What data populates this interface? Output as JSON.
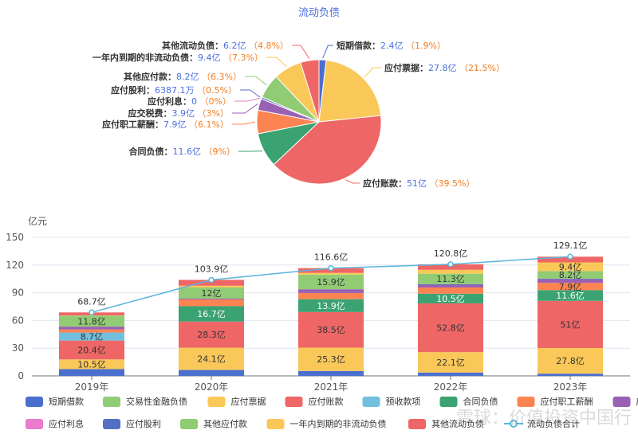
{
  "pie": {
    "title": "流动负债",
    "slices": [
      {
        "name": "短期借款",
        "value_label": "2.4亿",
        "pct_label": "1.9%",
        "value": 2.4,
        "color": "#4a6fce"
      },
      {
        "name": "应付票据",
        "value_label": "27.8亿",
        "pct_label": "21.5%",
        "value": 27.8,
        "color": "#f9c858"
      },
      {
        "name": "应付账款",
        "value_label": "51亿",
        "pct_label": "39.5%",
        "value": 51,
        "color": "#ee6666"
      },
      {
        "name": "合同负债",
        "value_label": "11.6亿",
        "pct_label": "9%",
        "value": 11.6,
        "color": "#3ba272"
      },
      {
        "name": "应付职工薪酬",
        "value_label": "7.9亿",
        "pct_label": "6.1%",
        "value": 7.9,
        "color": "#fc8452"
      },
      {
        "name": "应交税费",
        "value_label": "3.9亿",
        "pct_label": "3%",
        "value": 3.9,
        "color": "#9a60b4"
      },
      {
        "name": "应付利息",
        "value_label": "0",
        "pct_label": "0%",
        "value": 0,
        "color": "#ea7ccc"
      },
      {
        "name": "应付股利",
        "value_label": "6387.1万",
        "pct_label": "0.5%",
        "value": 0.64,
        "color": "#5470c6"
      },
      {
        "name": "其他应付款",
        "value_label": "8.2亿",
        "pct_label": "6.3%",
        "value": 8.2,
        "color": "#91cc75"
      },
      {
        "name": "一年内到期的非流动负债",
        "value_label": "9.4亿",
        "pct_label": "7.3%",
        "value": 9.4,
        "color": "#fac858"
      },
      {
        "name": "其他流动负债",
        "value_label": "6.2亿",
        "pct_label": "4.8%",
        "value": 6.2,
        "color": "#ee6666"
      }
    ]
  },
  "chart_data": [
    {
      "type": "pie",
      "title": "流动负债",
      "categories": [
        "短期借款",
        "应付票据",
        "应付账款",
        "合同负债",
        "应付职工薪酬",
        "应交税费",
        "应付利息",
        "应付股利",
        "其他应付款",
        "一年内到期的非流动负债",
        "其他流动负债"
      ],
      "values": [
        2.4,
        27.8,
        51,
        11.6,
        7.9,
        3.9,
        0,
        0.63871,
        8.2,
        9.4,
        6.2
      ],
      "percent": [
        1.9,
        21.5,
        39.5,
        9,
        6.1,
        3,
        0,
        0.5,
        6.3,
        7.3,
        4.8
      ]
    },
    {
      "type": "bar",
      "stacked": true,
      "ylabel": "亿元",
      "ylim": [
        0,
        150
      ],
      "yticks": [
        0,
        30,
        60,
        90,
        120,
        150
      ],
      "categories": [
        "2019年",
        "2020年",
        "2021年",
        "2022年",
        "2023年"
      ],
      "series": [
        {
          "name": "短期借款",
          "values": [
            7.3,
            6.4,
            5.3,
            3.6,
            2.4
          ]
        },
        {
          "name": "交易性金融负债",
          "values": [
            0.03,
            0,
            0,
            0,
            0
          ]
        },
        {
          "name": "应付票据",
          "values": [
            10.5,
            24.1,
            25.3,
            22.1,
            27.8
          ]
        },
        {
          "name": "应付账款",
          "values": [
            20.4,
            28.3,
            38.5,
            52.8,
            51
          ]
        },
        {
          "name": "预收款项",
          "values": [
            8.7,
            0,
            0,
            0,
            0
          ]
        },
        {
          "name": "合同负债",
          "values": [
            0,
            16.7,
            13.9,
            10.5,
            11.6
          ]
        },
        {
          "name": "应付职工薪酬",
          "values": [
            3.3,
            7.2,
            6.7,
            6.7,
            7.9
          ]
        },
        {
          "name": "应交税费",
          "values": [
            3.1,
            1.0,
            4.1,
            3.0,
            3.9
          ]
        },
        {
          "name": "应付利息",
          "values": [
            0,
            0,
            0,
            0,
            0
          ]
        },
        {
          "name": "应付股利",
          "values": [
            0,
            0,
            0,
            0.63,
            0.64
          ]
        },
        {
          "name": "其他应付款",
          "values": [
            11.8,
            12,
            15.9,
            11.3,
            8.2
          ]
        },
        {
          "name": "一年内到期的非流动负债",
          "values": [
            0.3,
            1.9,
            1.8,
            4.2,
            9.4
          ]
        },
        {
          "name": "其他流动负债",
          "values": [
            3.27,
            6.3,
            5.1,
            5.97,
            6.2
          ]
        }
      ],
      "line": {
        "name": "流动负债合计",
        "values": [
          68.7,
          103.9,
          116.6,
          120.8,
          129.1
        ]
      }
    }
  ],
  "bar": {
    "ylabel": "亿元",
    "yticks": [
      "0",
      "30",
      "60",
      "90",
      "120",
      "150"
    ],
    "categories": [
      "2019年",
      "2020年",
      "2021年",
      "2022年",
      "2023年"
    ],
    "totals": [
      "68.7亿",
      "103.9亿",
      "116.6亿",
      "120.8亿",
      "129.1亿"
    ]
  },
  "colors": {
    "短期借款": "#4a6fce",
    "交易性金融负债": "#91cc75",
    "应付票据": "#fac858",
    "应付账款": "#ee6666",
    "预收款项": "#73c0de",
    "合同负债": "#3ba272",
    "应付职工薪酬": "#fc8452",
    "应交税费": "#9a60b4",
    "应付利息": "#ea7ccc",
    "应付股利": "#5470c6",
    "其他应付款": "#91cc75",
    "一年内到期的非流动负债": "#fac858",
    "其他流动负债": "#ee6666",
    "流动负债合计": "#5ab4dc"
  },
  "legend": [
    [
      "短期借款",
      "交易性金融负债",
      "应付票据",
      "应付账款",
      "预收款项",
      "合同负债",
      "应付职工薪酬",
      "应交税费"
    ],
    [
      "应付利息",
      "应付股利",
      "其他应付款",
      "一年内到期的非流动负债",
      "其他流动负债",
      "流动负债合计"
    ]
  ],
  "watermark": "雪球：价值投资中国行"
}
